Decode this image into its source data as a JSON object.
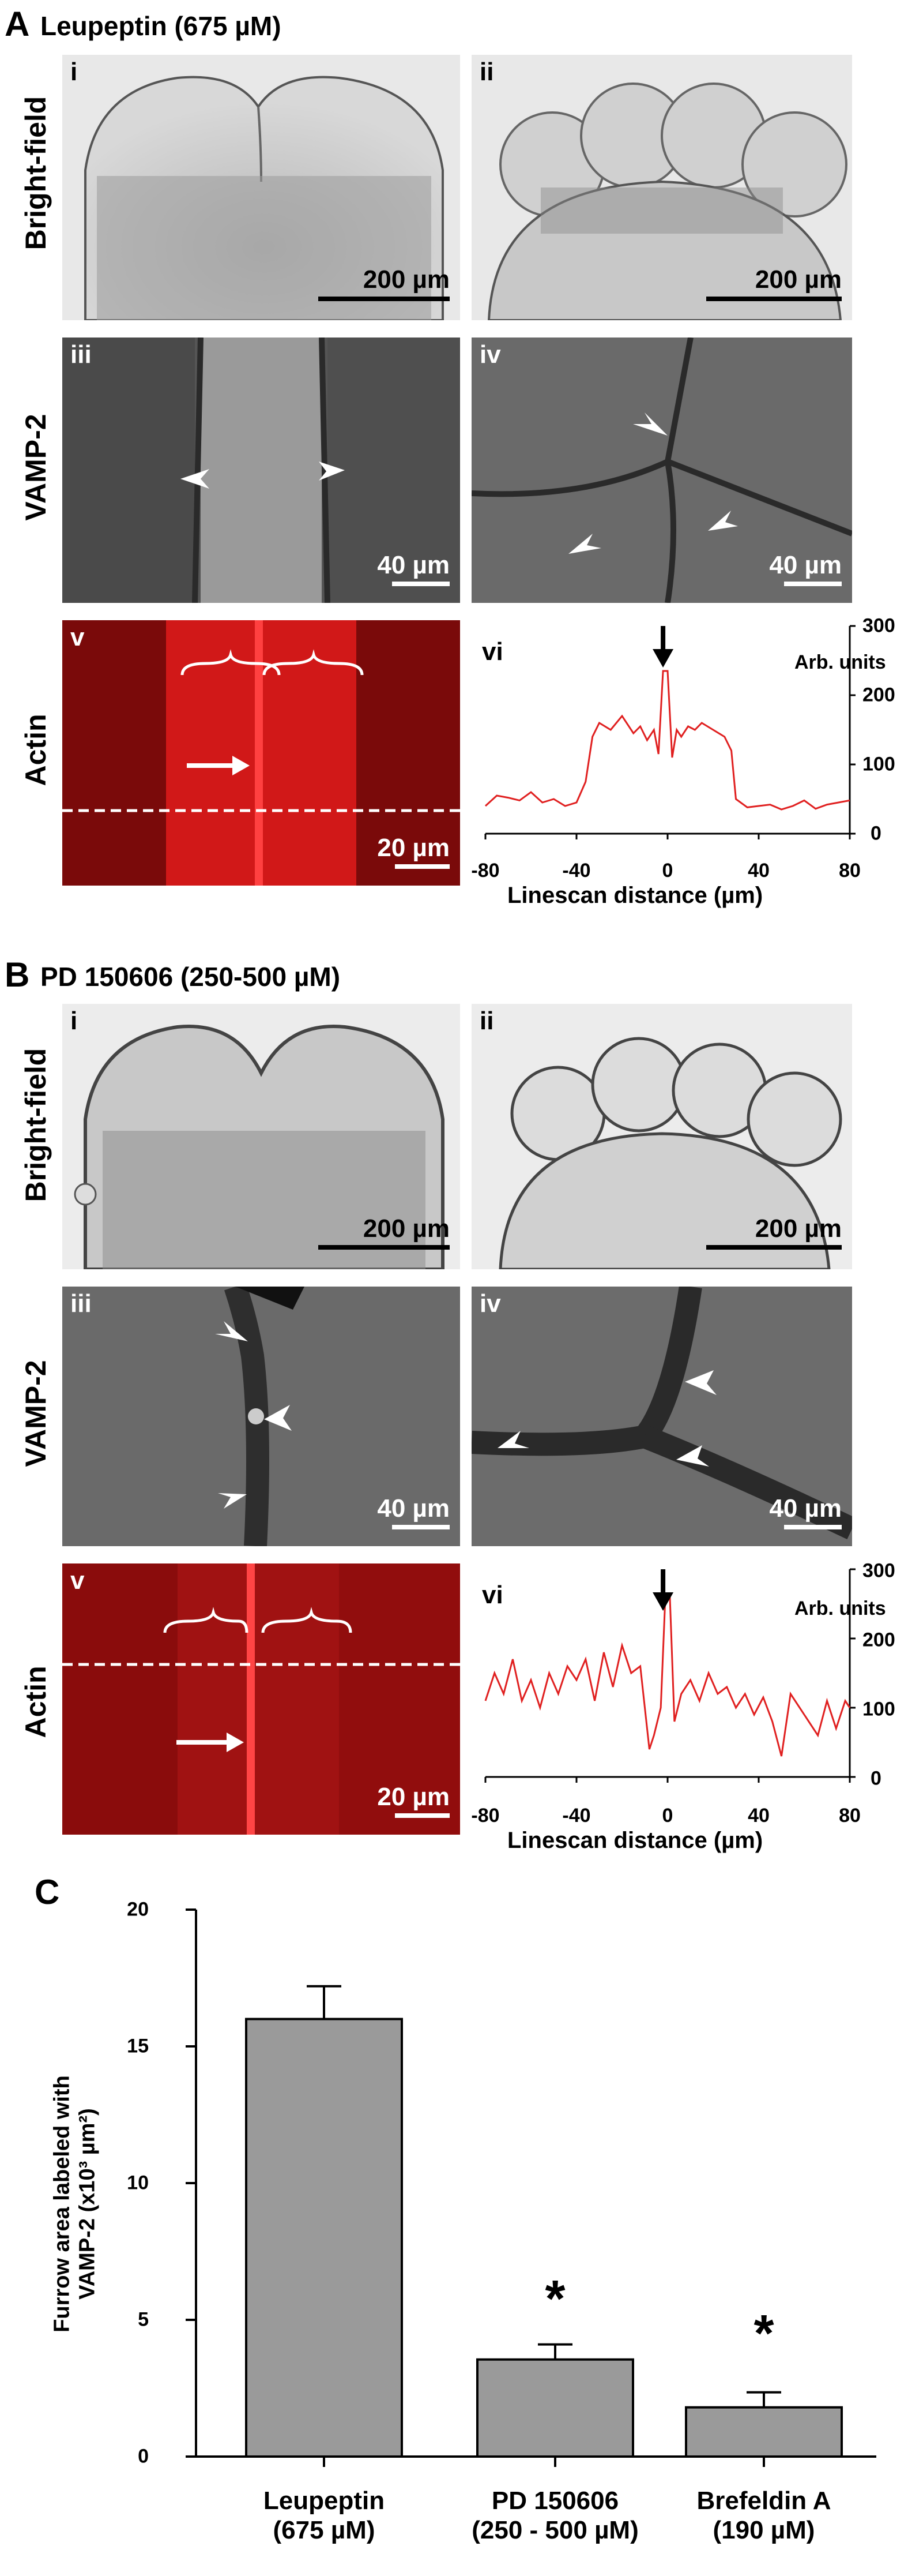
{
  "panel_a": {
    "letter": "A",
    "title": "Leupeptin (675 µM)",
    "row_labels": [
      "Bright-field",
      "VAMP-2",
      "Actin"
    ],
    "sub_labels": [
      "i",
      "ii",
      "iii",
      "iv",
      "v",
      "vi"
    ],
    "scale_labels": [
      "200 µm",
      "200 µm",
      "40 µm",
      "40 µm",
      "20 µm"
    ],
    "linescan": {
      "type": "line",
      "color": "#e02020",
      "xlabel": "Linescan distance (µm)",
      "ylabel": "Arb. units",
      "xticks": [
        "-80",
        "-40",
        "0",
        "40",
        "80"
      ],
      "yticks": [
        "300",
        "200",
        "100",
        "0"
      ],
      "xlim": [
        -80,
        80
      ],
      "ylim": [
        0,
        300
      ],
      "x": [
        -80,
        -75,
        -70,
        -65,
        -60,
        -55,
        -50,
        -45,
        -40,
        -36,
        -33,
        -30,
        -25,
        -20,
        -15,
        -12,
        -9,
        -6,
        -4,
        -2,
        0,
        2,
        4,
        6,
        9,
        12,
        15,
        20,
        25,
        28,
        30,
        35,
        40,
        45,
        50,
        55,
        60,
        65,
        70,
        75,
        80
      ],
      "y": [
        40,
        55,
        52,
        48,
        60,
        45,
        50,
        40,
        45,
        75,
        140,
        160,
        150,
        170,
        145,
        155,
        135,
        150,
        115,
        235,
        235,
        110,
        150,
        140,
        155,
        150,
        160,
        150,
        140,
        120,
        50,
        38,
        40,
        42,
        35,
        40,
        48,
        36,
        42,
        45,
        48
      ]
    }
  },
  "panel_b": {
    "letter": "B",
    "title": "PD 150606 (250-500 µM)",
    "row_labels": [
      "Bright-field",
      "VAMP-2",
      "Actin"
    ],
    "sub_labels": [
      "i",
      "ii",
      "iii",
      "iv",
      "v",
      "vi"
    ],
    "scale_labels": [
      "200 µm",
      "200 µm",
      "40 µm",
      "40 µm",
      "20 µm"
    ],
    "linescan": {
      "type": "line",
      "color": "#e02020",
      "xlabel": "Linescan distance (µm)",
      "ylabel": "Arb. units",
      "xticks": [
        "-80",
        "-40",
        "0",
        "40",
        "80"
      ],
      "yticks": [
        "300",
        "200",
        "100",
        "0"
      ],
      "xlim": [
        -80,
        80
      ],
      "ylim": [
        0,
        300
      ],
      "x": [
        -80,
        -76,
        -72,
        -68,
        -64,
        -60,
        -56,
        -52,
        -48,
        -44,
        -40,
        -36,
        -32,
        -28,
        -24,
        -20,
        -16,
        -12,
        -8,
        -6,
        -3,
        -1,
        1,
        3,
        6,
        10,
        14,
        18,
        22,
        26,
        30,
        34,
        38,
        42,
        46,
        50,
        54,
        58,
        62,
        66,
        70,
        74,
        78,
        80
      ],
      "y": [
        110,
        150,
        120,
        170,
        110,
        140,
        100,
        150,
        120,
        160,
        140,
        170,
        110,
        180,
        130,
        190,
        150,
        160,
        40,
        60,
        100,
        260,
        260,
        80,
        120,
        140,
        110,
        150,
        120,
        130,
        100,
        120,
        90,
        115,
        80,
        30,
        120,
        100,
        80,
        60,
        110,
        70,
        110,
        100
      ]
    }
  },
  "panel_c": {
    "letter": "C",
    "chart_data": {
      "type": "bar",
      "categories": [
        "Leupeptin (675 µM)",
        "PD 150606 (250 - 500 µM)",
        "Brefeldin A (190 µM)"
      ],
      "category_lines": [
        [
          "Leupeptin",
          "(675 µM)"
        ],
        [
          "PD 150606",
          "(250 - 500 µM)"
        ],
        [
          "Brefeldin A",
          "(190 µM)"
        ]
      ],
      "values": [
        16.0,
        3.55,
        1.8
      ],
      "errors": [
        1.2,
        0.55,
        0.55
      ],
      "significance": [
        "",
        "*",
        "*"
      ],
      "ylabel_line1": "Furrow area labeled with",
      "ylabel_line2": "VAMP-2  (x10³ µm²)",
      "yticks": [
        "20",
        "15",
        "10",
        "5",
        "0"
      ],
      "ylim": [
        0,
        20
      ],
      "bar_color": "#9a9a9a"
    }
  }
}
